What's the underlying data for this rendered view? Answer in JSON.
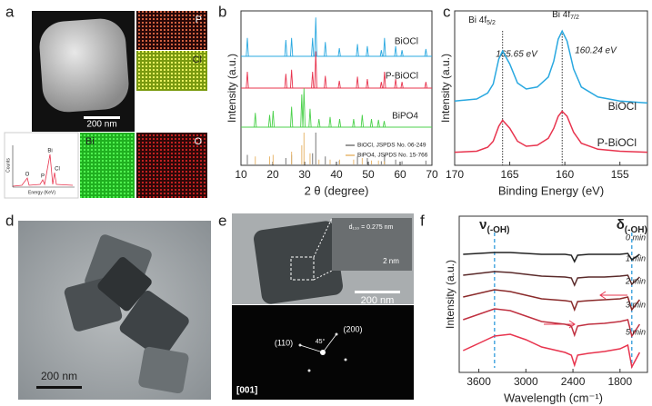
{
  "panel_labels": [
    "a",
    "b",
    "c",
    "d",
    "e",
    "f"
  ],
  "images": {
    "a": {
      "scale_bar": "200 nm",
      "maps": [
        "P",
        "Cl",
        "Bi",
        "O"
      ],
      "eds": {
        "y_label": "Counts",
        "x_label": "Energy (KeV)",
        "peaks": [
          "O",
          "P",
          "Bi",
          "Cl"
        ]
      }
    },
    "d": {
      "scale_bar": "200 nm"
    },
    "e": {
      "d_spacing": "d₁₁₀ = 0.275 nm",
      "inset_scale": "2 nm",
      "scale_bar": "200 nm",
      "spots": [
        "(110)",
        "(200)"
      ],
      "angle": "45°",
      "zone": "[001]"
    }
  },
  "chart_data": [
    {
      "type": "stick",
      "y_label": "Intensity (a.u.)",
      "x_label": "2 θ (degree)",
      "xlim": [
        10,
        70
      ],
      "xticks": [
        10,
        20,
        30,
        40,
        50,
        60,
        70
      ],
      "ylim": [
        0,
        100
      ],
      "series": [
        {
          "name": "BiOCl",
          "color": "#29a8e0",
          "x": [
            12.0,
            24.1,
            25.9,
            32.5,
            33.5,
            36.5,
            40.9,
            46.6,
            49.7,
            54.1,
            55.1,
            58.6,
            60.6,
            68.1
          ],
          "values": [
            45,
            40,
            45,
            45,
            95,
            35,
            20,
            30,
            25,
            15,
            45,
            25,
            15,
            18
          ]
        },
        {
          "name": "P-BiOCl",
          "color": "#e8344e",
          "x": [
            12.0,
            24.1,
            25.9,
            32.5,
            33.5,
            36.5,
            40.9,
            46.6,
            49.7,
            54.1,
            55.1,
            58.6,
            60.6,
            68.1
          ],
          "values": [
            40,
            35,
            45,
            40,
            90,
            30,
            18,
            28,
            22,
            15,
            40,
            22,
            15,
            15
          ]
        },
        {
          "name": "BiPO4",
          "color": "#4cd14c",
          "x": [
            14.5,
            19.0,
            20.1,
            25.9,
            29.1,
            29.8,
            31.7,
            34.5,
            38.0,
            41.0,
            45.4,
            48.1,
            51.0,
            53.2,
            55.0
          ],
          "values": [
            35,
            30,
            40,
            50,
            80,
            95,
            45,
            20,
            25,
            20,
            20,
            30,
            20,
            18,
            15
          ]
        },
        {
          "name": "BiOCl, JSPDS No. 06-249",
          "color": "#777777",
          "kind": "reference",
          "x": [
            12.0,
            24.1,
            25.9,
            32.5,
            33.5,
            36.5,
            40.9,
            46.6,
            49.7,
            54.1,
            55.1,
            58.6,
            60.6,
            68.1
          ],
          "values": [
            30,
            20,
            30,
            35,
            100,
            25,
            12,
            25,
            20,
            10,
            30,
            15,
            10,
            12
          ]
        },
        {
          "name": "BiPO4, JSPDS No. 15-766",
          "color": "#e8b870",
          "kind": "reference",
          "x": [
            14.5,
            19.0,
            20.1,
            25.9,
            29.1,
            29.8,
            31.7,
            34.5,
            38.0,
            41.0,
            45.4,
            48.1,
            51.0,
            53.2,
            55.0
          ],
          "values": [
            25,
            25,
            30,
            40,
            60,
            100,
            35,
            15,
            15,
            15,
            15,
            20,
            12,
            12,
            10
          ]
        }
      ]
    },
    {
      "type": "line",
      "y_label": "Intensity (a.u.)",
      "x_label": "Binding Energy (eV)",
      "xlim": [
        170,
        152.5
      ],
      "xticks": [
        170,
        165,
        160,
        155
      ],
      "x": [
        170,
        168,
        167,
        166.5,
        166,
        165.65,
        165,
        164.3,
        163.5,
        162.5,
        161.5,
        161,
        160.6,
        160.24,
        159.8,
        159.2,
        158.5,
        157,
        155,
        152.5
      ],
      "series": [
        {
          "name": "BiOCl",
          "color": "#29a8e0",
          "values": [
            8,
            10,
            16,
            25,
            50,
            58,
            45,
            26,
            20,
            22,
            32,
            48,
            70,
            78,
            68,
            40,
            22,
            12,
            8,
            6
          ]
        },
        {
          "name": "P-BiOCl",
          "color": "#e8344e",
          "values": [
            4,
            5,
            9,
            15,
            30,
            36,
            28,
            15,
            10,
            11,
            18,
            28,
            40,
            45,
            40,
            24,
            13,
            7,
            5,
            4
          ]
        }
      ],
      "annotations": [
        {
          "main": "Bi 4f",
          "sub": "5/2",
          "value": 165.65,
          "label": "165.65 eV"
        },
        {
          "main": "Bi 4f",
          "sub": "7/2",
          "value": 160.24,
          "label": "160.24 eV"
        }
      ]
    },
    {
      "type": "line",
      "y_label": "Intensity (a.u.)",
      "x_label": "Wavelength (cm⁻¹)",
      "xlim": [
        3850,
        1450
      ],
      "xticks": [
        3600,
        3000,
        2400,
        1800
      ],
      "x": [
        3800,
        3600,
        3400,
        3200,
        3000,
        2800,
        2500,
        2420,
        2380,
        2340,
        2200,
        2000,
        1800,
        1700,
        1650,
        1550
      ],
      "series": [
        {
          "name": "0 min",
          "color": "#222222",
          "values": [
            2,
            3,
            4,
            4,
            3,
            2,
            2,
            1,
            -6,
            1,
            2,
            2,
            2,
            3,
            -4,
            2
          ]
        },
        {
          "name": "1 min",
          "color": "#5a2a2a",
          "values": [
            4,
            6,
            8,
            7,
            5,
            3,
            2,
            1,
            -7,
            1,
            2,
            2,
            3,
            4,
            -6,
            2
          ]
        },
        {
          "name": "2 min",
          "color": "#8a2a2a",
          "values": [
            6,
            10,
            14,
            12,
            8,
            4,
            2,
            1,
            -8,
            1,
            2,
            3,
            4,
            6,
            -8,
            3
          ]
        },
        {
          "name": "3 min",
          "color": "#c03040",
          "values": [
            8,
            14,
            20,
            18,
            12,
            6,
            3,
            1,
            -9,
            1,
            3,
            4,
            6,
            8,
            -10,
            3
          ]
        },
        {
          "name": "5 min",
          "color": "#e8344e",
          "values": [
            6,
            14,
            22,
            24,
            18,
            10,
            4,
            1,
            -10,
            1,
            3,
            5,
            8,
            12,
            -12,
            4
          ]
        }
      ],
      "annotations": [
        {
          "main": "ν",
          "sub": "(-OH)",
          "x": 3400
        },
        {
          "main": "δ",
          "sub": "(-OH)",
          "x": 1650
        }
      ]
    }
  ]
}
